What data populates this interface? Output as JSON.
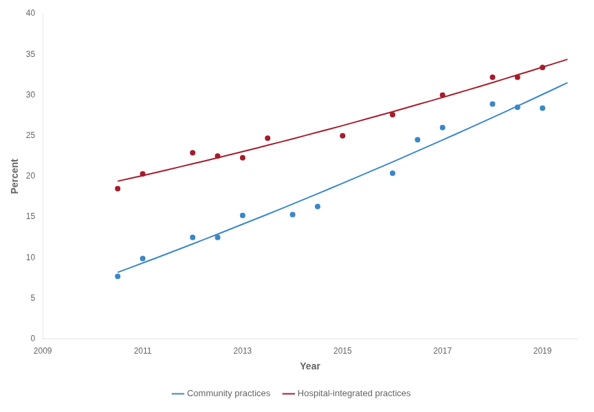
{
  "chart_data": {
    "type": "scatter",
    "xlabel": "Year",
    "ylabel": "Percent",
    "xlim": [
      2009,
      2019.7
    ],
    "ylim": [
      0,
      40
    ],
    "xticks": [
      2009,
      2011,
      2013,
      2015,
      2017,
      2019
    ],
    "yticks": [
      0,
      5,
      10,
      15,
      20,
      25,
      30,
      35,
      40
    ],
    "grid": false,
    "legend": "bottom",
    "series": [
      {
        "name": "Community practices",
        "color": "#3A87C8",
        "x": [
          2010.5,
          2011,
          2012,
          2012.5,
          2013,
          2014,
          2014.5,
          2016,
          2016.5,
          2017,
          2018,
          2018.5,
          2019
        ],
        "values": [
          7.7,
          9.9,
          12.5,
          12.5,
          15.2,
          15.3,
          16.3,
          20.4,
          24.5,
          26.0,
          28.9,
          28.5,
          28.4
        ],
        "fit_x": [
          2010.5,
          2011,
          2011.5,
          2012,
          2012.5,
          2013,
          2013.5,
          2014,
          2014.5,
          2015,
          2015.5,
          2016,
          2016.5,
          2017,
          2017.5,
          2018,
          2018.5,
          2019,
          2019.5
        ],
        "fit_values": [
          8.2,
          9.35,
          10.51,
          11.7,
          12.9,
          14.12,
          15.35,
          16.6,
          17.87,
          19.16,
          20.46,
          21.78,
          23.12,
          24.48,
          25.85,
          27.24,
          28.65,
          30.08,
          31.52
        ]
      },
      {
        "name": "Hospital-integrated practices",
        "color": "#A61C2B",
        "x": [
          2010.5,
          2011,
          2012,
          2012.5,
          2013,
          2013.5,
          2015,
          2016,
          2017,
          2018,
          2018.5,
          2019
        ],
        "values": [
          18.5,
          20.3,
          22.9,
          22.5,
          22.3,
          24.7,
          25.0,
          27.6,
          30.0,
          32.2,
          32.2,
          33.4
        ],
        "fit_x": [
          2010.5,
          2011,
          2011.5,
          2012,
          2012.5,
          2013,
          2013.5,
          2014,
          2014.5,
          2015,
          2015.5,
          2016,
          2016.5,
          2017,
          2017.5,
          2018,
          2018.5,
          2019,
          2019.5
        ],
        "fit_values": [
          19.41,
          20.1,
          20.82,
          21.55,
          22.29,
          23.05,
          23.83,
          24.62,
          25.43,
          26.25,
          27.1,
          27.95,
          28.83,
          29.71,
          30.62,
          31.54,
          32.48,
          33.43,
          34.4
        ]
      }
    ]
  }
}
